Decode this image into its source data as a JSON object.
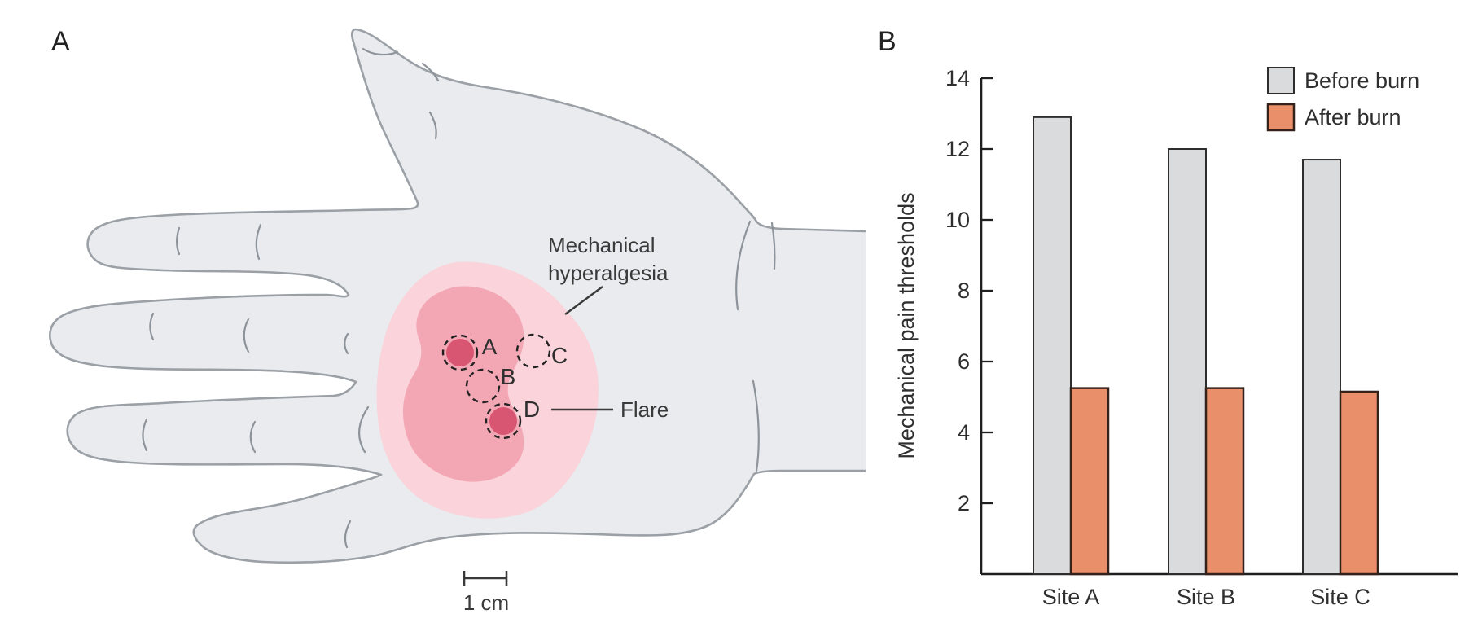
{
  "figure": {
    "panel_a_label": "A",
    "panel_b_label": "B"
  },
  "panel_a": {
    "annotation_hyperalgesia_line1": "Mechanical",
    "annotation_hyperalgesia_line2": "hyperalgesia",
    "annotation_flare": "Flare",
    "scale_bar_label": "1 cm",
    "sites": [
      {
        "label": "A",
        "marker": "filled"
      },
      {
        "label": "B",
        "marker": "open"
      },
      {
        "label": "C",
        "marker": "open"
      },
      {
        "label": "D",
        "marker": "filled"
      }
    ],
    "colors": {
      "hand_fill": "#e9ebee",
      "hand_stroke": "#9aa0a6",
      "hyperalgesia_fill": "#fad3db",
      "flare_fill": "#f3a7b4",
      "site_fill": "#d85672"
    }
  },
  "chart_data": {
    "type": "bar",
    "title": "",
    "categories": [
      "Site A",
      "Site B",
      "Site C"
    ],
    "series": [
      {
        "name": "Before burn",
        "color": "#d9dbdd",
        "values": [
          12.9,
          12.0,
          11.7
        ]
      },
      {
        "name": "After burn",
        "color": "#e9906b",
        "values": [
          5.25,
          5.25,
          5.15
        ]
      }
    ],
    "xlabel": "",
    "ylabel": "Mechanical pain thresholds",
    "yticks": [
      2,
      4,
      6,
      8,
      10,
      12,
      14
    ],
    "ylim": [
      0,
      14
    ],
    "legend": [
      "Before burn",
      "After burn"
    ],
    "legend_position": "top-right",
    "grid": false
  }
}
